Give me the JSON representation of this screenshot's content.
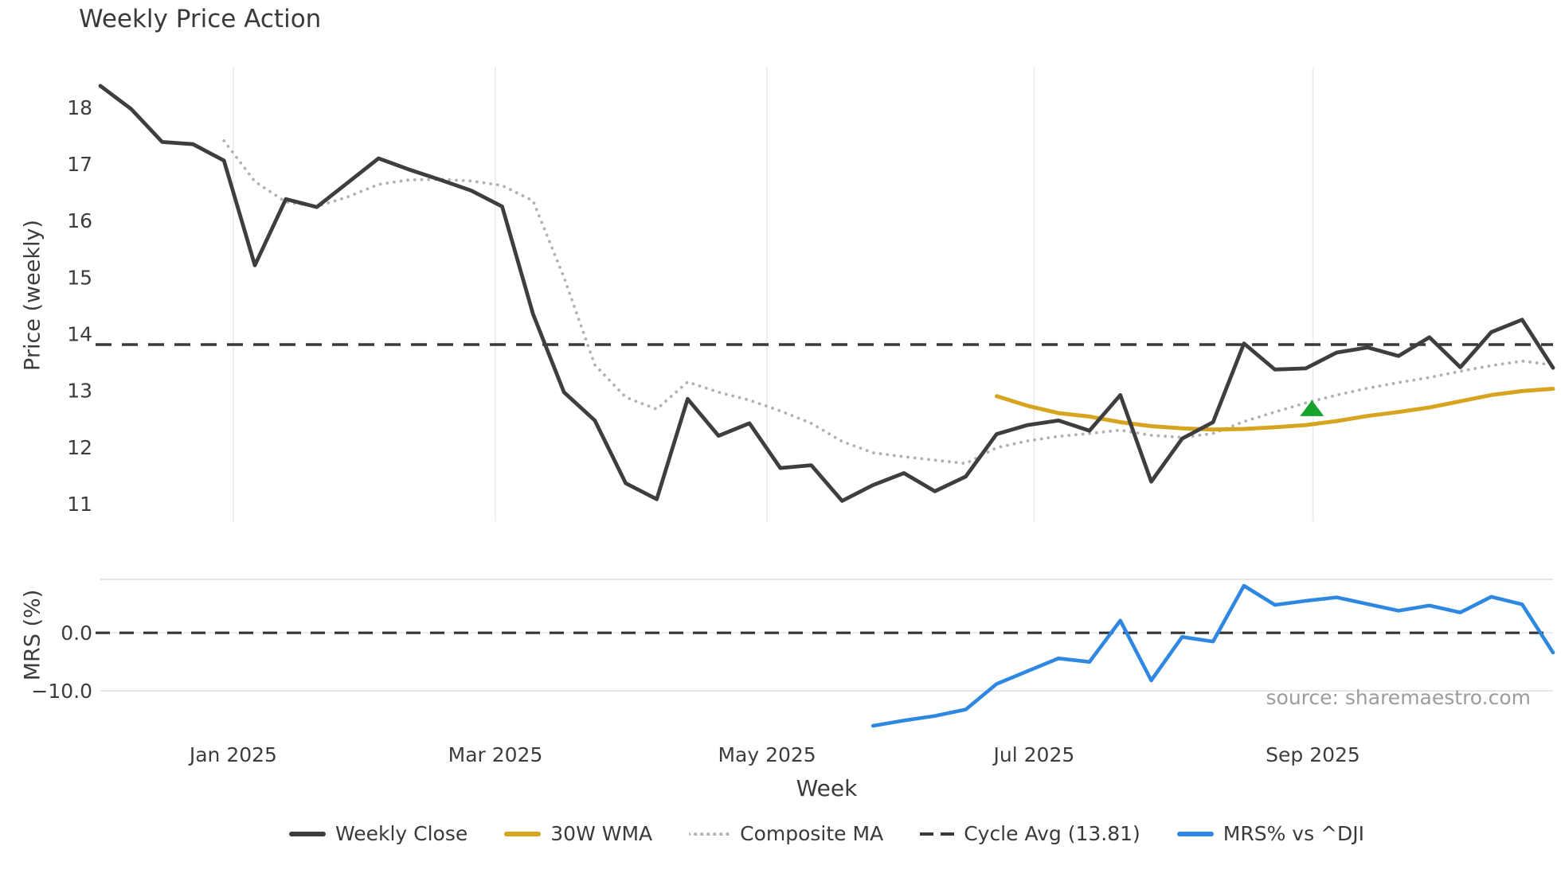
{
  "title": "Weekly Price Action",
  "xlabel": "Week",
  "source_text": "source: sharemaestro.com",
  "legend": {
    "weekly_close": "Weekly Close",
    "wma": "30W WMA",
    "composite": "Composite MA",
    "cycle": "Cycle Avg (13.81)",
    "mrs": "MRS% vs ^DJI"
  },
  "colors": {
    "weekly_close": "#3e3e40",
    "wma": "#d7a420",
    "composite": "#b2b2b4",
    "cycle_dash": "#39393b",
    "mrs_line": "#2e87e0",
    "mrs_zero_dash": "#333335",
    "marker_green": "#17a22d",
    "grid_vertical": "#eaeaef",
    "grid_horizontal": "#dcdce2",
    "tick_text": "#3d3d3d",
    "source_text": "#9c9c9c"
  },
  "chart_data": [
    {
      "panel": "price",
      "type": "line",
      "title": "Weekly Price Action",
      "ylabel": "Price (weekly)",
      "xlabel": "Week",
      "x_unit": "week index (0 = early Dec 2024, weekly steps through late Oct 2025)",
      "n_weeks": 48,
      "ylim": [
        10.69,
        18.66
      ],
      "yticks": [
        11,
        12,
        13,
        14,
        15,
        16,
        17,
        18
      ],
      "xticks": [
        {
          "week": 4.3,
          "label": "Jan 2025"
        },
        {
          "week": 12.78,
          "label": "Mar 2025"
        },
        {
          "week": 21.57,
          "label": "May 2025"
        },
        {
          "week": 30.21,
          "label": "Jul 2025"
        },
        {
          "week": 39.23,
          "label": "Sep 2025"
        }
      ],
      "grid": "vertical-only",
      "legend_position": "bottom-center",
      "series": [
        {
          "name": "Weekly Close",
          "style": "solid",
          "start_week": 0,
          "values": [
            18.38,
            17.97,
            17.39,
            17.35,
            17.06,
            15.21,
            16.38,
            16.24,
            16.67,
            17.1,
            16.9,
            16.72,
            16.53,
            16.25,
            14.35,
            12.97,
            12.47,
            11.36,
            11.08,
            12.85,
            12.2,
            12.42,
            11.63,
            11.68,
            11.05,
            11.33,
            11.54,
            11.22,
            11.48,
            12.23,
            12.39,
            12.47,
            12.29,
            12.92,
            11.39,
            12.15,
            12.44,
            13.83,
            13.37,
            13.39,
            13.67,
            13.76,
            13.61,
            13.94,
            13.41,
            14.03,
            14.25,
            13.4
          ]
        },
        {
          "name": "Composite MA",
          "style": "dotted",
          "start_week": 4,
          "values": [
            17.41,
            16.69,
            16.33,
            16.25,
            16.42,
            16.64,
            16.72,
            16.73,
            16.7,
            16.62,
            16.35,
            15.0,
            13.45,
            12.88,
            12.67,
            13.15,
            12.97,
            12.83,
            12.64,
            12.42,
            12.1,
            11.9,
            11.83,
            11.77,
            11.71,
            11.99,
            12.11,
            12.19,
            12.24,
            12.3,
            12.21,
            12.17,
            12.24,
            12.45,
            12.62,
            12.78,
            12.92,
            13.04,
            13.14,
            13.23,
            13.34,
            13.44,
            13.52,
            13.45
          ]
        },
        {
          "name": "30W WMA",
          "style": "solid",
          "start_week": 29,
          "values": [
            12.9,
            12.73,
            12.6,
            12.54,
            12.44,
            12.37,
            12.33,
            12.31,
            12.32,
            12.35,
            12.39,
            12.46,
            12.55,
            12.62,
            12.7,
            12.81,
            12.92,
            12.99,
            13.03
          ]
        },
        {
          "name": "Cycle Avg",
          "style": "dashed-hline",
          "value": 13.81
        }
      ],
      "markers": [
        {
          "name": "signal-triangle",
          "shape": "triangle-up",
          "week": 39.2,
          "value": 12.68,
          "color": "#17a22d"
        }
      ]
    },
    {
      "panel": "mrs",
      "type": "line",
      "ylabel": "MRS (%)",
      "ylim": [
        -17.1,
        9.2
      ],
      "yticks": [
        {
          "value": 0,
          "label": "0.0"
        },
        {
          "value": -10,
          "label": "−10.0"
        }
      ],
      "grid": "horizontal-only",
      "series": [
        {
          "name": "MRS% vs ^DJI",
          "style": "solid",
          "start_week": 25,
          "values": [
            -16.0,
            -15.1,
            -14.3,
            -13.2,
            -8.8,
            -6.6,
            -4.4,
            -5.0,
            2.1,
            -8.2,
            -0.7,
            -1.5,
            8.1,
            4.8,
            5.5,
            6.1,
            4.95,
            3.8,
            4.7,
            3.5,
            6.2,
            4.9,
            -3.4
          ]
        },
        {
          "name": "Zero Line",
          "style": "dashed-hline",
          "value": 0
        }
      ]
    }
  ]
}
